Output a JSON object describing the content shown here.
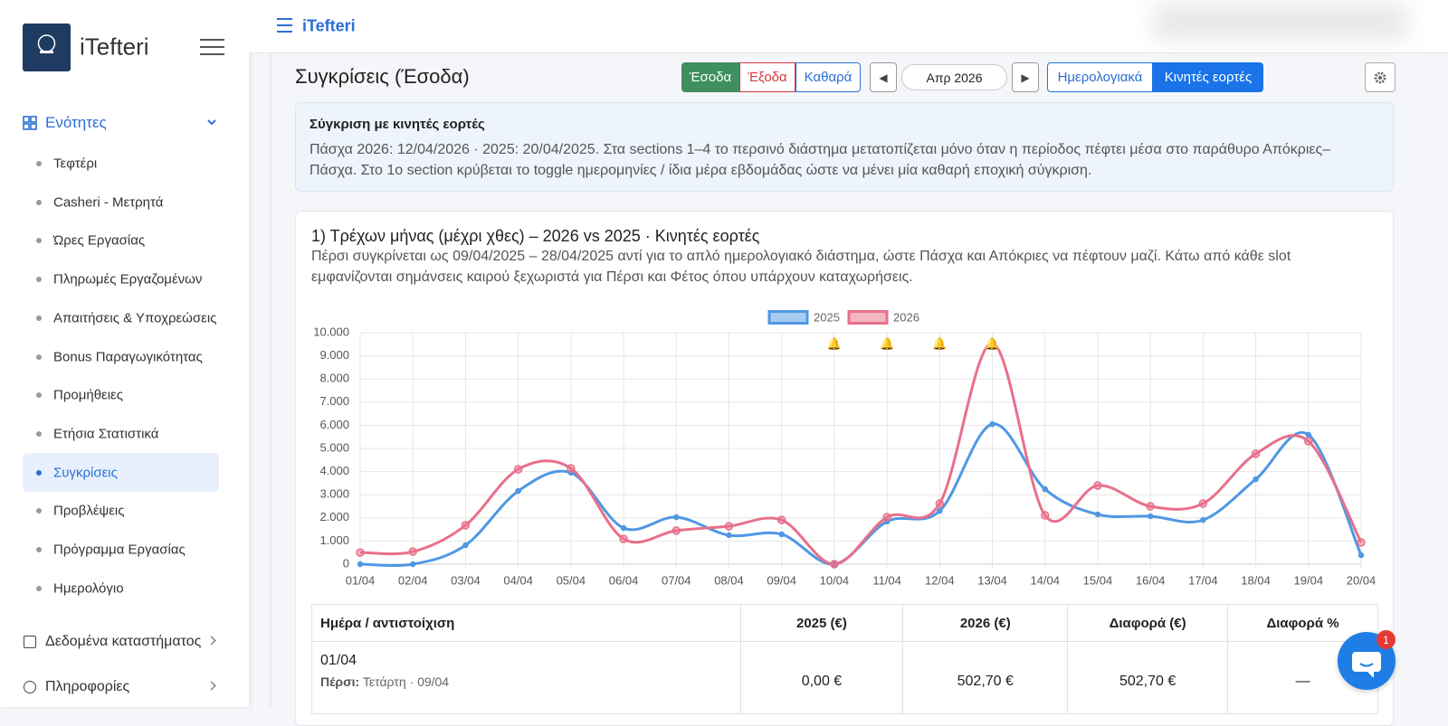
{
  "sidebar": {
    "brand": "iTefteri",
    "group": "Ενότητες",
    "items": [
      "Τεφτέρι",
      "Casheri - Μετρητά",
      "Ώρες Εργασίας",
      "Πληρωμές Εργαζομένων",
      "Απαιτήσεις & Υποχρεώσεις",
      "Bonus Παραγωγικότητας",
      "Προμήθειες",
      "Ετήσια Στατιστικά",
      "Συγκρίσεις",
      "Προβλέψεις",
      "Πρόγραμμα Εργασίας",
      "Ημερολόγιο"
    ],
    "other_sections": [
      "Δεδομένα καταστήματος",
      "Πληροφορίες"
    ]
  },
  "topbar": {
    "brand": "iTefteri"
  },
  "header": {
    "title": "Συγκρίσεις (Έσοδα)",
    "type_buttons": [
      "Έσοδα",
      "Έξοδα",
      "Καθαρά"
    ],
    "prev": "◀",
    "period": "Απρ 2026",
    "next": "▶",
    "mode_buttons": [
      "Ημερολογιακά",
      "Κινητές εορτές"
    ]
  },
  "notice": {
    "title": "Σύγκριση με κινητές εορτές",
    "text": "Πάσχα 2026: 12/04/2026 · 2025: 20/04/2025. Στα sections 1–4 το περσινό διάστημα μετατοπίζεται μόνο όταν η περίοδος πέφτει μέσα στο παράθυρο Απόκριες–Πάσχα. Στο 1ο section κρύβεται το toggle ημερομηνίες / ίδια μέρα εβδομάδας ώστε να μένει μία καθαρή εποχική σύγκριση."
  },
  "card": {
    "title": "1) Τρέχων μήνας (μέχρι χθες) – 2026 vs 2025 · Κινητές εορτές",
    "subtitle": "Πέρσι συγκρίνεται ως 09/04/2025 – 28/04/2025 αντί για το απλό ημερολογιακό διάστημα, ώστε Πάσχα και Απόκριες να πέφτουν μαζί. Κάτω από κάθε slot εμφανίζονται σημάνσεις καιρού ξεχωριστά για Πέρσι και Φέτος όπου υπάρχουν καταχωρήσεις."
  },
  "chart_data": {
    "type": "line",
    "categories": [
      "01/04",
      "02/04",
      "03/04",
      "04/04",
      "05/04",
      "06/04",
      "07/04",
      "08/04",
      "09/04",
      "10/04",
      "11/04",
      "12/04",
      "13/04",
      "14/04",
      "15/04",
      "16/04",
      "17/04",
      "18/04",
      "19/04",
      "20/04"
    ],
    "series": [
      {
        "name": "2025",
        "color": "#4f97e3",
        "values": [
          0,
          0,
          820,
          3160,
          3950,
          1560,
          2030,
          1250,
          1290,
          0,
          1840,
          2300,
          6050,
          3240,
          2150,
          2070,
          1910,
          3670,
          5590,
          390
        ]
      },
      {
        "name": "2026",
        "color": "#e8708a",
        "values": [
          502.7,
          540,
          1680,
          4100,
          4140,
          1090,
          1450,
          1640,
          1910,
          0,
          2030,
          2620,
          9530,
          2110,
          3400,
          2500,
          2620,
          4770,
          5310,
          940
        ]
      }
    ],
    "markers": [
      {
        "at": "10/04",
        "label": "🔔"
      },
      {
        "at": "11/04",
        "label": "🔔"
      },
      {
        "at": "12/04",
        "label": "🔔"
      },
      {
        "at": "13/04",
        "label": "🔔"
      }
    ],
    "ylim": [
      0,
      10000
    ],
    "yticks": [
      0,
      {
        "value": 1000,
        "label": "1.000"
      },
      {
        "value": 2000,
        "label": "2.000"
      },
      {
        "value": 3000,
        "label": "3.000"
      },
      {
        "value": 4000,
        "label": "4.000"
      },
      {
        "value": 5000,
        "label": "5.000"
      },
      {
        "value": 6000,
        "label": "6.000"
      },
      {
        "value": 7000,
        "label": "7.000"
      },
      {
        "value": 8000,
        "label": "8.000"
      },
      {
        "value": 9000,
        "label": "9.000"
      },
      {
        "value": 10000,
        "label": "10.000"
      }
    ],
    "grid": true,
    "legend": "top"
  },
  "table": {
    "headers": [
      "Ημέρα / αντιστοίχιση",
      "2025 (€)",
      "2026 (€)",
      "Διαφορά (€)",
      "Διαφορά %"
    ],
    "rows": [
      {
        "day": "01/04",
        "prior_label": "Πέρσι:",
        "prior_date": "Τετάρτη · 09/04",
        "cells": [
          "0,00 €",
          "502,70 €",
          "502,70 €",
          "—"
        ]
      }
    ]
  },
  "chat": {
    "badge": 1
  }
}
